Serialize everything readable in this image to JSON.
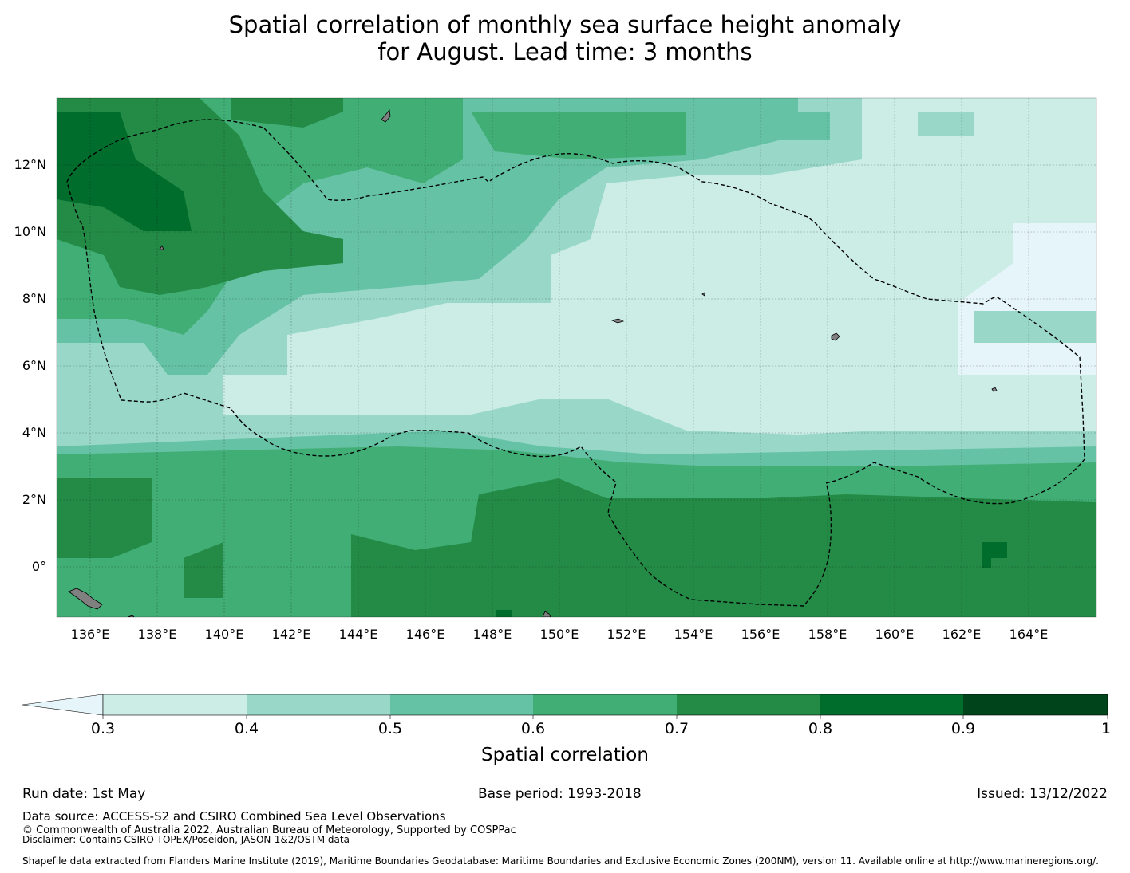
{
  "title": {
    "line1": "Spatial correlation of monthly sea surface height anomaly",
    "line2": "for August. Lead time: 3 months"
  },
  "map": {
    "lon_labels": [
      "136°E",
      "138°E",
      "140°E",
      "142°E",
      "144°E",
      "146°E",
      "148°E",
      "150°E",
      "152°E",
      "154°E",
      "156°E",
      "158°E",
      "160°E",
      "162°E",
      "164°E"
    ],
    "lat_labels": [
      "12°N",
      "10°N",
      "8°N",
      "6°N",
      "4°N",
      "2°N",
      "0°"
    ],
    "extent": {
      "lon_min": 135,
      "lon_max": 166,
      "lat_min": -1.5,
      "lat_max": 14
    },
    "eez_color": "#000000",
    "land_color": "#808080",
    "background_color": "#e5f5f9"
  },
  "colorbar": {
    "label": "Spatial correlation",
    "ticks": [
      "0.3",
      "0.4",
      "0.5",
      "0.6",
      "0.7",
      "0.8",
      "0.9",
      "1"
    ],
    "colors": [
      "#e5f5f9",
      "#ccece6",
      "#99d8c9",
      "#66c2a4",
      "#41ae76",
      "#238b45",
      "#006d2c",
      "#00441b"
    ],
    "extend": "min"
  },
  "footer": {
    "run_date": "Run date: 1st May",
    "base_period": "Base period: 1993-2018",
    "issued": "Issued: 13/12/2022",
    "data_source": "Data source: ACCESS-S2 and CSIRO Combined Sea Level Observations",
    "copyright": "© Commonwealth of Australia 2022, Australian Bureau of Meteorology, Supported by COSPPac",
    "disclaimer": "Disclaimer: Contains CSIRO TOPEX/Poseidon, JASON-1&2/OSTM data",
    "shapefile": "Shapefile data extracted from Flanders Marine Institute (2019), Maritime Boundaries Geodatabase: Maritime Boundaries and Exclusive Economic Zones (200NM), version 11. Available online at http://www.marineregions.org/."
  }
}
